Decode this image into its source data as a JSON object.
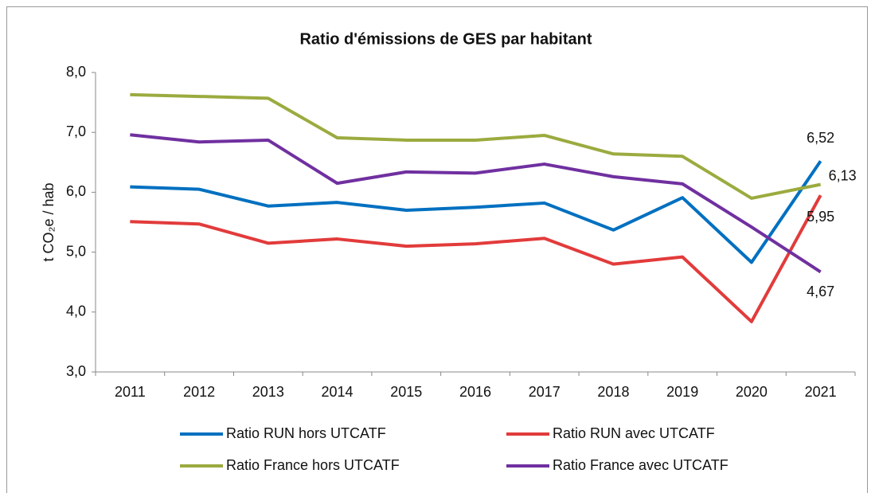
{
  "chart_data": {
    "type": "line",
    "title": "Ratio d'émissions de GES par habitant",
    "y_label": "t CO₂e / hab",
    "categories": [
      "2011",
      "2012",
      "2013",
      "2014",
      "2015",
      "2016",
      "2017",
      "2018",
      "2019",
      "2020",
      "2021"
    ],
    "ylim": [
      3,
      8
    ],
    "yticks": [
      {
        "value": 3,
        "label": "3,0"
      },
      {
        "value": 4,
        "label": "4,0"
      },
      {
        "value": 5,
        "label": "5,0"
      },
      {
        "value": 6,
        "label": "6,0"
      },
      {
        "value": 7,
        "label": "7,0"
      },
      {
        "value": 8,
        "label": "8,0"
      }
    ],
    "grid": false,
    "legend": "bottom",
    "series": [
      {
        "name": "Ratio RUN hors UTCATF",
        "color": "#0070c0",
        "values": [
          6.09,
          6.05,
          5.77,
          5.83,
          5.7,
          5.75,
          5.82,
          5.37,
          5.91,
          4.83,
          6.52
        ],
        "value_labels": [
          null,
          null,
          null,
          null,
          null,
          null,
          null,
          null,
          null,
          null,
          "6,52"
        ]
      },
      {
        "name": "Ratio RUN avec UTCATF",
        "color": "#e23b3b",
        "values": [
          5.51,
          5.47,
          5.15,
          5.22,
          5.1,
          5.14,
          5.23,
          4.8,
          4.92,
          3.84,
          5.95
        ],
        "value_labels": [
          null,
          null,
          null,
          null,
          null,
          null,
          null,
          null,
          null,
          null,
          "5,95"
        ]
      },
      {
        "name": "Ratio France hors UTCATF",
        "color": "#9bab3f",
        "values": [
          7.63,
          7.6,
          7.57,
          6.91,
          6.87,
          6.87,
          6.95,
          6.64,
          6.6,
          5.9,
          6.13
        ],
        "value_labels": [
          null,
          null,
          null,
          null,
          null,
          null,
          null,
          null,
          null,
          null,
          "6,13"
        ]
      },
      {
        "name": "Ratio France avec UTCATF",
        "color": "#7030a0",
        "values": [
          6.96,
          6.84,
          6.87,
          6.15,
          6.34,
          6.32,
          6.47,
          6.26,
          6.14,
          5.42,
          4.67
        ],
        "value_labels": [
          null,
          null,
          null,
          null,
          null,
          null,
          null,
          null,
          null,
          null,
          "4,67"
        ]
      }
    ]
  }
}
